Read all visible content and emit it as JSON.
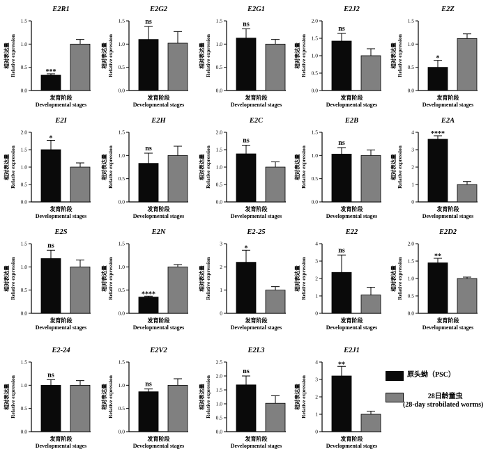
{
  "colors": {
    "psc": "#0a0a0a",
    "worm": "#808080",
    "axis": "#000000"
  },
  "legend": {
    "psc_label": "原头蚴（PSC）",
    "worm_label_line1": "28日龄童虫",
    "worm_label_line2": "(28-day strobilated worms)"
  },
  "axis_text": {
    "ylabel_cn": "相对表达量",
    "ylabel_en": "Relative expression",
    "xlabel_cn": "发育阶段",
    "xlabel_en": "Developmental stages"
  },
  "chart_data": [
    {
      "type": "bar",
      "title": "E2R1",
      "series": [
        {
          "name": "PSC",
          "values": [
            0.33
          ]
        },
        {
          "name": "28-day strobilated worms",
          "values": [
            1.0
          ]
        }
      ],
      "errors": [
        0.03,
        0.1
      ],
      "significance": "***",
      "ylim": [
        0,
        1.5
      ],
      "yticks": [
        "0.0",
        "0.5",
        "1.0",
        "1.5"
      ]
    },
    {
      "type": "bar",
      "title": "E2G2",
      "series": [
        {
          "name": "PSC",
          "values": [
            1.1
          ]
        },
        {
          "name": "28-day strobilated worms",
          "values": [
            1.02
          ]
        }
      ],
      "errors": [
        0.28,
        0.25
      ],
      "significance": "ns",
      "ylim": [
        0,
        1.5
      ],
      "yticks": [
        "0.0",
        "0.5",
        "1.0",
        "1.5"
      ]
    },
    {
      "type": "bar",
      "title": "E2G1",
      "series": [
        {
          "name": "PSC",
          "values": [
            1.13
          ]
        },
        {
          "name": "28-day strobilated worms",
          "values": [
            1.0
          ]
        }
      ],
      "errors": [
        0.2,
        0.1
      ],
      "significance": "ns",
      "ylim": [
        0,
        1.5
      ],
      "yticks": [
        "0.0",
        "0.5",
        "1.0",
        "1.5"
      ]
    },
    {
      "type": "bar",
      "title": "E2J2",
      "series": [
        {
          "name": "PSC",
          "values": [
            1.42
          ]
        },
        {
          "name": "28-day strobilated worms",
          "values": [
            1.0
          ]
        }
      ],
      "errors": [
        0.22,
        0.2
      ],
      "significance": "ns",
      "ylim": [
        0,
        2.0
      ],
      "yticks": [
        "0.0",
        "0.5",
        "1.0",
        "1.5",
        "2.0"
      ]
    },
    {
      "type": "bar",
      "title": "E2Z",
      "series": [
        {
          "name": "PSC",
          "values": [
            0.5
          ]
        },
        {
          "name": "28-day strobilated worms",
          "values": [
            1.12
          ]
        }
      ],
      "errors": [
        0.15,
        0.1
      ],
      "significance": "*",
      "ylim": [
        0,
        1.5
      ],
      "yticks": [
        "0.0",
        "0.5",
        "1.0",
        "1.5"
      ]
    },
    {
      "type": "bar",
      "title": "E2I",
      "series": [
        {
          "name": "PSC",
          "values": [
            1.5
          ]
        },
        {
          "name": "28-day strobilated worms",
          "values": [
            1.0
          ]
        }
      ],
      "errors": [
        0.27,
        0.12
      ],
      "significance": "*",
      "ylim": [
        0,
        2.0
      ],
      "yticks": [
        "0.0",
        "0.5",
        "1.0",
        "1.5",
        "2.0"
      ]
    },
    {
      "type": "bar",
      "title": "E2H",
      "series": [
        {
          "name": "PSC",
          "values": [
            0.83
          ]
        },
        {
          "name": "28-day strobilated worms",
          "values": [
            1.0
          ]
        }
      ],
      "errors": [
        0.22,
        0.2
      ],
      "significance": "ns",
      "ylim": [
        0,
        1.5
      ],
      "yticks": [
        "0.0",
        "0.5",
        "1.0",
        "1.5"
      ]
    },
    {
      "type": "bar",
      "title": "E2C",
      "series": [
        {
          "name": "PSC",
          "values": [
            1.38
          ]
        },
        {
          "name": "28-day strobilated worms",
          "values": [
            1.0
          ]
        }
      ],
      "errors": [
        0.25,
        0.15
      ],
      "significance": "ns",
      "ylim": [
        0,
        2.0
      ],
      "yticks": [
        "0.0",
        "0.5",
        "1.0",
        "1.5",
        "2.0"
      ]
    },
    {
      "type": "bar",
      "title": "E2B",
      "series": [
        {
          "name": "PSC",
          "values": [
            1.03
          ]
        },
        {
          "name": "28-day strobilated worms",
          "values": [
            1.0
          ]
        }
      ],
      "errors": [
        0.14,
        0.12
      ],
      "significance": "ns",
      "ylim": [
        0,
        1.5
      ],
      "yticks": [
        "0.0",
        "0.5",
        "1.0",
        "1.5"
      ]
    },
    {
      "type": "bar",
      "title": "E2A",
      "series": [
        {
          "name": "PSC",
          "values": [
            3.6
          ]
        },
        {
          "name": "28-day strobilated worms",
          "values": [
            1.0
          ]
        }
      ],
      "errors": [
        0.2,
        0.17
      ],
      "significance": "****",
      "ylim": [
        0,
        4
      ],
      "yticks": [
        "0",
        "1",
        "2",
        "3",
        "4"
      ]
    },
    {
      "type": "bar",
      "title": "E2S",
      "series": [
        {
          "name": "PSC",
          "values": [
            1.18
          ]
        },
        {
          "name": "28-day strobilated worms",
          "values": [
            1.0
          ]
        }
      ],
      "errors": [
        0.18,
        0.15
      ],
      "significance": "ns",
      "ylim": [
        0,
        1.5
      ],
      "yticks": [
        "0.0",
        "0.5",
        "1.0",
        "1.5"
      ]
    },
    {
      "type": "bar",
      "title": "E2N",
      "series": [
        {
          "name": "PSC",
          "values": [
            0.35
          ]
        },
        {
          "name": "28-day strobilated worms",
          "values": [
            1.0
          ]
        }
      ],
      "errors": [
        0.02,
        0.05
      ],
      "significance": "****",
      "ylim": [
        0,
        1.5
      ],
      "yticks": [
        "0.0",
        "0.5",
        "1.0",
        "1.5"
      ]
    },
    {
      "type": "bar",
      "title": "E2-25",
      "series": [
        {
          "name": "PSC",
          "values": [
            2.2
          ]
        },
        {
          "name": "28-day strobilated worms",
          "values": [
            1.0
          ]
        }
      ],
      "errors": [
        0.52,
        0.15
      ],
      "significance": "*",
      "ylim": [
        0,
        3
      ],
      "yticks": [
        "0",
        "1",
        "2",
        "3"
      ]
    },
    {
      "type": "bar",
      "title": "E22",
      "series": [
        {
          "name": "PSC",
          "values": [
            2.35
          ]
        },
        {
          "name": "28-day strobilated worms",
          "values": [
            1.05
          ]
        }
      ],
      "errors": [
        1.0,
        0.45
      ],
      "significance": "ns",
      "ylim": [
        0,
        4
      ],
      "yticks": [
        "0",
        "1",
        "2",
        "3",
        "4"
      ]
    },
    {
      "type": "bar",
      "title": "E2D2",
      "series": [
        {
          "name": "PSC",
          "values": [
            1.45
          ]
        },
        {
          "name": "28-day strobilated worms",
          "values": [
            1.0
          ]
        }
      ],
      "errors": [
        0.13,
        0.04
      ],
      "significance": "**",
      "ylim": [
        0,
        2.0
      ],
      "yticks": [
        "0.0",
        "0.5",
        "1.0",
        "1.5",
        "2.0"
      ]
    },
    {
      "type": "bar",
      "title": "E2-24",
      "series": [
        {
          "name": "PSC",
          "values": [
            1.0
          ]
        },
        {
          "name": "28-day strobilated worms",
          "values": [
            1.0
          ]
        }
      ],
      "errors": [
        0.12,
        0.1
      ],
      "significance": "ns",
      "ylim": [
        0,
        1.5
      ],
      "yticks": [
        "0.0",
        "0.5",
        "1.0",
        "1.5"
      ]
    },
    {
      "type": "bar",
      "title": "E2V2",
      "series": [
        {
          "name": "PSC",
          "values": [
            0.86
          ]
        },
        {
          "name": "28-day strobilated worms",
          "values": [
            1.0
          ]
        }
      ],
      "errors": [
        0.06,
        0.14
      ],
      "significance": "ns",
      "ylim": [
        0,
        1.5
      ],
      "yticks": [
        "0.0",
        "0.5",
        "1.0",
        "1.5"
      ]
    },
    {
      "type": "bar",
      "title": "E2L3",
      "series": [
        {
          "name": "PSC",
          "values": [
            1.68
          ]
        },
        {
          "name": "28-day strobilated worms",
          "values": [
            1.02
          ]
        }
      ],
      "errors": [
        0.32,
        0.27
      ],
      "significance": "ns",
      "ylim": [
        0,
        2.5
      ],
      "yticks": [
        "0.0",
        "0.5",
        "1.0",
        "1.5",
        "2.0",
        "2.5"
      ]
    },
    {
      "type": "bar",
      "title": "E2J1",
      "series": [
        {
          "name": "PSC",
          "values": [
            3.2
          ]
        },
        {
          "name": "28-day strobilated worms",
          "values": [
            1.0
          ]
        }
      ],
      "errors": [
        0.55,
        0.18
      ],
      "significance": "**",
      "ylim": [
        0,
        4
      ],
      "yticks": [
        "0",
        "1",
        "2",
        "3",
        "4"
      ]
    }
  ]
}
